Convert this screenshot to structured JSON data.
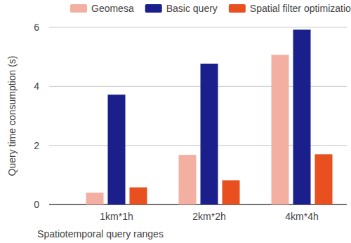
{
  "chart_data": {
    "type": "bar",
    "categories": [
      "1km*1h",
      "2km*2h",
      "4km*4h"
    ],
    "series": [
      {
        "name": "Geomesa",
        "color": "#f4afa3",
        "values": [
          0.4,
          1.68,
          5.07
        ]
      },
      {
        "name": "Basic query",
        "color": "#1b1f8c",
        "values": [
          3.72,
          4.77,
          5.92
        ]
      },
      {
        "name": "Spatial filter optimization query",
        "color": "#e8501f",
        "values": [
          0.58,
          0.82,
          1.7
        ]
      }
    ],
    "x_label": "Spatiotemporal query ranges",
    "y_label": "Query time consumption (s)",
    "ylim": [
      0,
      6
    ],
    "yticks": [
      0,
      2,
      4,
      6
    ],
    "grid": true,
    "legend": "top"
  }
}
